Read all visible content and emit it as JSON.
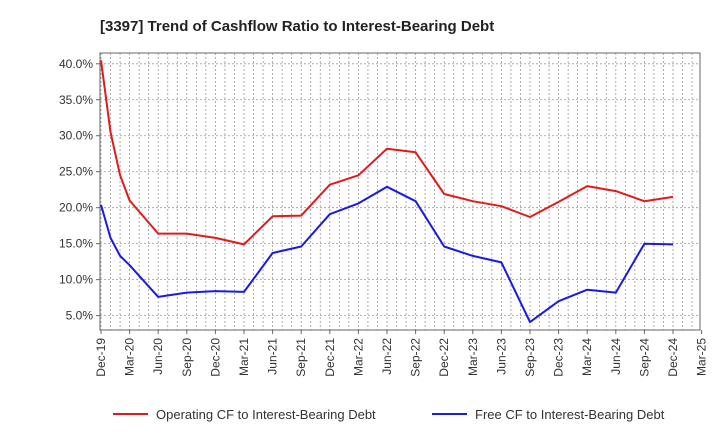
{
  "chart_data": {
    "type": "line",
    "title": "[3397]  Trend of Cashflow Ratio to Interest-Bearing Debt",
    "xlabel": "",
    "ylabel": "",
    "x_ticks": [
      "Dec-19",
      "Mar-20",
      "Jun-20",
      "Sep-20",
      "Dec-20",
      "Mar-21",
      "Jun-21",
      "Sep-21",
      "Dec-21",
      "Mar-22",
      "Jun-22",
      "Sep-22",
      "Dec-22",
      "Mar-23",
      "Jun-23",
      "Sep-23",
      "Dec-23",
      "Mar-24",
      "Jun-24",
      "Sep-24",
      "Dec-24",
      "Mar-25"
    ],
    "y_ticks": [
      "5.0%",
      "10.0%",
      "15.0%",
      "20.0%",
      "25.0%",
      "30.0%",
      "35.0%",
      "40.0%"
    ],
    "ylim": [
      3.0,
      41.5
    ],
    "grid": true,
    "legend_position": "bottom",
    "series": [
      {
        "name": "Operating CF to Interest-Bearing Debt",
        "color": "#e31a1c",
        "points": [
          [
            "Dec-19",
            40.5
          ],
          [
            "Jan-20",
            30.5
          ],
          [
            "Feb-20",
            24.5
          ],
          [
            "Mar-20",
            21.0
          ],
          [
            "Jun-20",
            16.4
          ],
          [
            "Sep-20",
            16.4
          ],
          [
            "Dec-20",
            15.8
          ],
          [
            "Mar-21",
            14.9
          ],
          [
            "Jun-21",
            18.8
          ],
          [
            "Sep-21",
            18.9
          ],
          [
            "Dec-21",
            23.2
          ],
          [
            "Mar-22",
            24.5
          ],
          [
            "Jun-22",
            28.2
          ],
          [
            "Sep-22",
            27.7
          ],
          [
            "Dec-22",
            21.9
          ],
          [
            "Mar-23",
            20.9
          ],
          [
            "Jun-23",
            20.2
          ],
          [
            "Sep-23",
            18.7
          ],
          [
            "Dec-23",
            20.8
          ],
          [
            "Mar-24",
            23.0
          ],
          [
            "Jun-24",
            22.3
          ],
          [
            "Sep-24",
            20.9
          ],
          [
            "Dec-24",
            21.5
          ]
        ]
      },
      {
        "name": "Free CF to Interest-Bearing Debt",
        "color": "#1a1ae6",
        "points": [
          [
            "Dec-19",
            20.4
          ],
          [
            "Jan-20",
            15.8
          ],
          [
            "Feb-20",
            13.3
          ],
          [
            "Mar-20",
            12.0
          ],
          [
            "Jun-20",
            7.6
          ],
          [
            "Sep-20",
            8.2
          ],
          [
            "Dec-20",
            8.4
          ],
          [
            "Mar-21",
            8.3
          ],
          [
            "Jun-21",
            13.7
          ],
          [
            "Sep-21",
            14.6
          ],
          [
            "Dec-21",
            19.1
          ],
          [
            "Mar-22",
            20.6
          ],
          [
            "Jun-22",
            22.9
          ],
          [
            "Sep-22",
            20.9
          ],
          [
            "Dec-22",
            14.6
          ],
          [
            "Mar-23",
            13.3
          ],
          [
            "Jun-23",
            12.4
          ],
          [
            "Sep-23",
            4.1
          ],
          [
            "Dec-23",
            7.0
          ],
          [
            "Mar-24",
            8.6
          ],
          [
            "Jun-24",
            8.2
          ],
          [
            "Sep-24",
            15.0
          ],
          [
            "Dec-24",
            14.9
          ]
        ]
      }
    ]
  }
}
